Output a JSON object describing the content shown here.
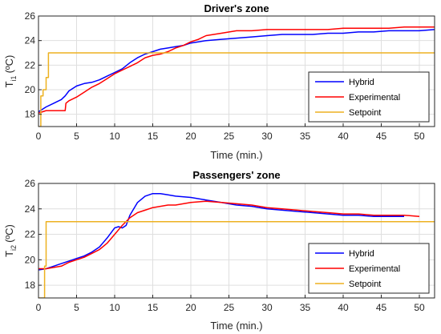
{
  "chart_data": [
    {
      "type": "line",
      "title": "Driver's zone",
      "xlabel": "Time (min.)",
      "ylabel": "T",
      "ylabel_sub": "i1",
      "ylabel_unit": "(ºC)",
      "xlim": [
        0,
        52
      ],
      "ylim": [
        17,
        26
      ],
      "xticks": [
        0,
        5,
        10,
        15,
        20,
        25,
        30,
        35,
        40,
        45,
        50
      ],
      "yticks": [
        18,
        20,
        22,
        24,
        26
      ],
      "grid": true,
      "legend": "bottom-right",
      "series": [
        {
          "name": "Hybrid",
          "color": "#0000ff",
          "x": [
            0,
            0.5,
            1,
            2,
            3,
            3.5,
            4,
            5,
            6,
            7,
            8,
            9,
            10,
            11,
            12,
            13,
            14,
            15,
            16,
            17,
            18,
            19,
            20,
            21,
            22,
            24,
            26,
            28,
            30,
            32,
            34,
            36,
            38,
            40,
            42,
            44,
            46,
            48,
            50,
            52
          ],
          "y": [
            18.2,
            18.4,
            18.6,
            18.9,
            19.2,
            19.5,
            19.9,
            20.3,
            20.5,
            20.6,
            20.8,
            21.1,
            21.4,
            21.7,
            22.2,
            22.6,
            22.9,
            23.1,
            23.3,
            23.4,
            23.5,
            23.6,
            23.8,
            23.9,
            24.0,
            24.1,
            24.2,
            24.3,
            24.4,
            24.5,
            24.5,
            24.5,
            24.6,
            24.6,
            24.7,
            24.7,
            24.8,
            24.8,
            24.8,
            24.9
          ]
        },
        {
          "name": "Experimental",
          "color": "#ff0000",
          "x": [
            0,
            0.5,
            1,
            2,
            3,
            3.5,
            3.6,
            4,
            5,
            6,
            7,
            8,
            9,
            10,
            11,
            12,
            13,
            14,
            15,
            16,
            17,
            18,
            19,
            20,
            21,
            22,
            24,
            26,
            28,
            30,
            32,
            34,
            36,
            38,
            40,
            42,
            44,
            46,
            48,
            50,
            52
          ],
          "y": [
            18.1,
            18.2,
            18.3,
            18.3,
            18.3,
            18.3,
            18.9,
            19.1,
            19.4,
            19.8,
            20.2,
            20.5,
            20.9,
            21.3,
            21.6,
            21.9,
            22.2,
            22.6,
            22.8,
            22.9,
            23.1,
            23.4,
            23.6,
            23.9,
            24.1,
            24.4,
            24.6,
            24.8,
            24.8,
            24.9,
            24.9,
            24.9,
            24.9,
            24.9,
            25.0,
            25.0,
            25.0,
            25.0,
            25.1,
            25.1,
            25.1
          ]
        },
        {
          "name": "Setpoint",
          "color": "#edb120",
          "x": [
            0,
            0.3,
            0.3,
            0.6,
            0.6,
            1.0,
            1.0,
            1.3,
            1.3,
            52
          ],
          "y": [
            17.0,
            17.0,
            19.5,
            19.5,
            20.0,
            20.0,
            21.0,
            21.0,
            23.0,
            23.0
          ]
        }
      ]
    },
    {
      "type": "line",
      "title": "Passengers' zone",
      "xlabel": "Time (min.)",
      "ylabel": "T",
      "ylabel_sub": "i2",
      "ylabel_unit": "(ºC)",
      "xlim": [
        0,
        52
      ],
      "ylim": [
        17,
        26
      ],
      "xticks": [
        0,
        5,
        10,
        15,
        20,
        25,
        30,
        35,
        40,
        45,
        50
      ],
      "yticks": [
        18,
        20,
        22,
        24,
        26
      ],
      "grid": true,
      "legend": "bottom-right",
      "series": [
        {
          "name": "Hybrid",
          "color": "#0000ff",
          "x": [
            0,
            1,
            2,
            3,
            4,
            5,
            6,
            7,
            8,
            9,
            10,
            10.5,
            11,
            11.5,
            12,
            13,
            14,
            15,
            16,
            17,
            18,
            20,
            22,
            24,
            26,
            28,
            30,
            32,
            34,
            36,
            38,
            40,
            42,
            44,
            46,
            48
          ],
          "y": [
            19.2,
            19.3,
            19.5,
            19.7,
            19.9,
            20.1,
            20.3,
            20.6,
            21.0,
            21.7,
            22.5,
            22.6,
            22.5,
            22.7,
            23.5,
            24.5,
            25.0,
            25.2,
            25.2,
            25.1,
            25.0,
            24.9,
            24.7,
            24.5,
            24.3,
            24.2,
            24.0,
            23.9,
            23.8,
            23.7,
            23.6,
            23.5,
            23.5,
            23.4,
            23.4,
            23.4
          ]
        },
        {
          "name": "Experimental",
          "color": "#ff0000",
          "x": [
            0,
            1,
            2,
            3,
            4,
            5,
            6,
            7,
            8,
            9,
            10,
            11,
            12,
            13,
            14,
            15,
            16,
            17,
            18,
            19,
            20,
            22,
            24,
            26,
            28,
            30,
            32,
            34,
            36,
            38,
            40,
            42,
            44,
            46,
            48,
            50
          ],
          "y": [
            19.3,
            19.3,
            19.4,
            19.5,
            19.8,
            20.0,
            20.2,
            20.5,
            20.8,
            21.3,
            22.0,
            22.7,
            23.3,
            23.7,
            23.9,
            24.1,
            24.2,
            24.3,
            24.3,
            24.4,
            24.5,
            24.6,
            24.5,
            24.4,
            24.3,
            24.1,
            24.0,
            23.9,
            23.8,
            23.7,
            23.6,
            23.6,
            23.5,
            23.5,
            23.5,
            23.4
          ]
        },
        {
          "name": "Setpoint",
          "color": "#edb120",
          "x": [
            0,
            0.8,
            0.8,
            1.0,
            1.0,
            52
          ],
          "y": [
            17.0,
            17.0,
            19.5,
            19.5,
            23.0,
            23.0
          ]
        }
      ]
    }
  ]
}
